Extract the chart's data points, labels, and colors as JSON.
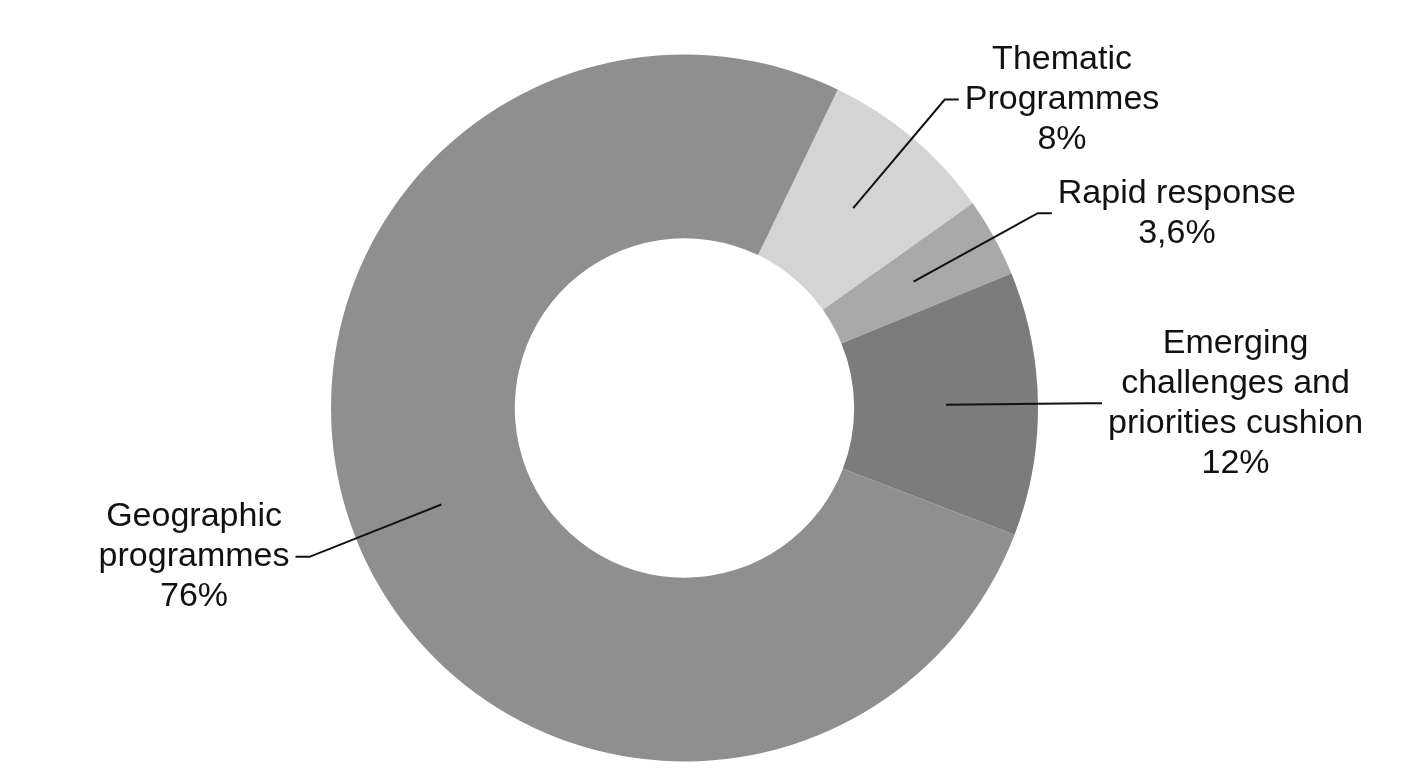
{
  "chart_data": {
    "type": "donut",
    "categories": [
      "Thematic Programmes",
      "Rapid response",
      "Emerging challenges and priorities cushion",
      "Geographic programmes"
    ],
    "values": [
      8,
      3.6,
      12,
      76
    ],
    "value_labels": [
      "8%",
      "3,6%",
      "12%",
      "76%"
    ],
    "colors": [
      "#d4d4d4",
      "#a9a9a9",
      "#7c7c7c",
      "#8f8f8f"
    ],
    "legend": false
  }
}
